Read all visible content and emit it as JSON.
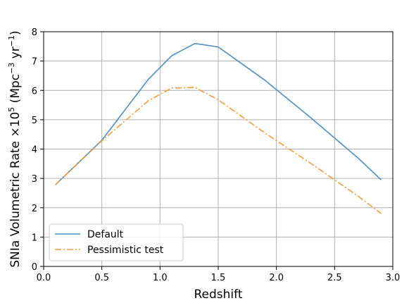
{
  "chart_data": {
    "type": "line",
    "title": "",
    "xlabel": "Redshift",
    "ylabel": {
      "main": "SNIa Volumetric Rate ×10",
      "exp1": "5",
      "mid": " (Mpc",
      "exp2": "−3",
      "mid2": " yr",
      "exp3": "−1",
      "end": ")"
    },
    "xlim": [
      0.0,
      3.0
    ],
    "ylim": [
      0,
      8
    ],
    "xticks": [
      0.0,
      0.5,
      1.0,
      1.5,
      2.0,
      2.5,
      3.0
    ],
    "xtick_labels": [
      "0.0",
      "0.5",
      "1.0",
      "1.5",
      "2.0",
      "2.5",
      "3.0"
    ],
    "yticks": [
      0,
      1,
      2,
      3,
      4,
      5,
      6,
      7,
      8
    ],
    "ytick_labels": [
      "0",
      "1",
      "2",
      "3",
      "4",
      "5",
      "6",
      "7",
      "8"
    ],
    "grid": true,
    "legend_position": "lower-left",
    "series": [
      {
        "name": "Default",
        "color": "#4a90c2",
        "style": "solid",
        "x": [
          0.1,
          0.5,
          0.9,
          1.1,
          1.3,
          1.5,
          1.9,
          2.3,
          2.7,
          2.9
        ],
        "y": [
          2.78,
          4.3,
          6.38,
          7.18,
          7.6,
          7.48,
          6.35,
          5.05,
          3.7,
          2.95
        ]
      },
      {
        "name": "Pessimistic test",
        "color": "#f39c3b",
        "style": "dashdot",
        "x": [
          0.1,
          0.5,
          0.9,
          1.1,
          1.3,
          1.5,
          1.9,
          2.3,
          2.7,
          2.9
        ],
        "y": [
          2.78,
          4.28,
          5.65,
          6.08,
          6.1,
          5.68,
          4.55,
          3.5,
          2.4,
          1.8
        ]
      }
    ]
  }
}
